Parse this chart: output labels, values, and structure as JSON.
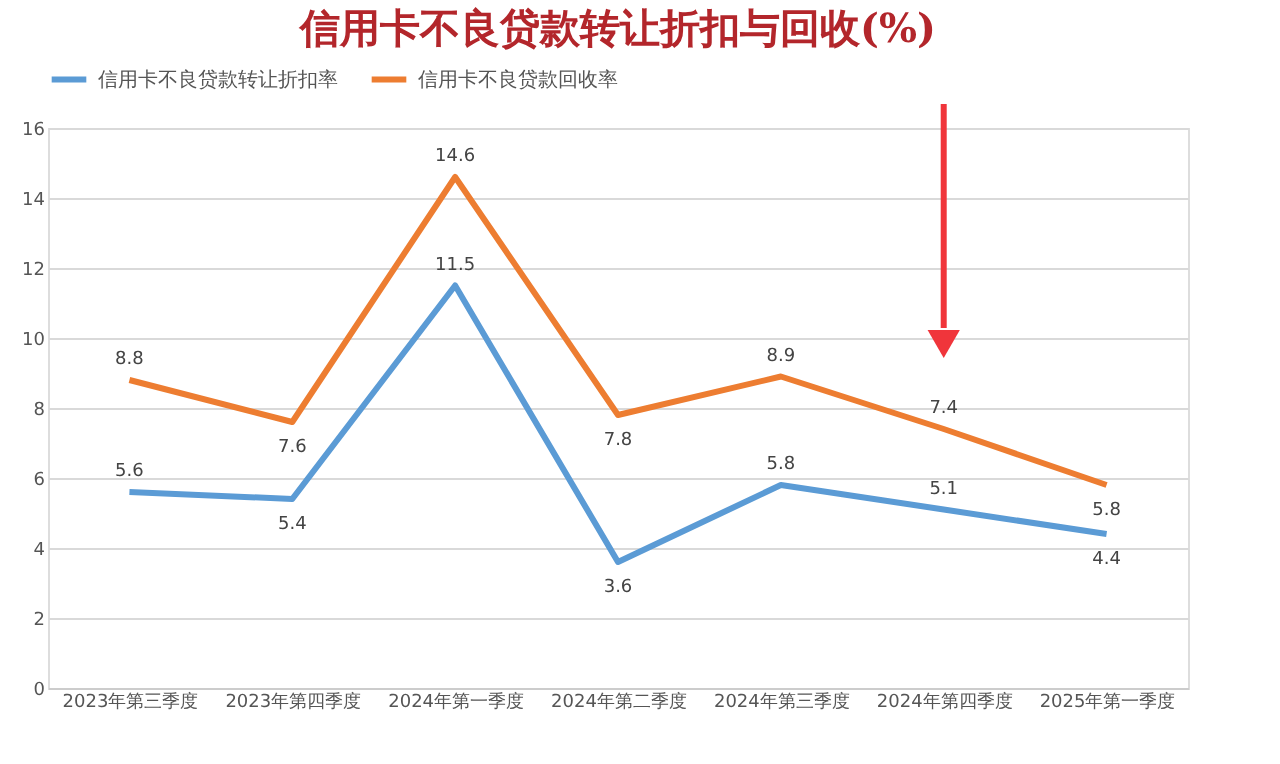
{
  "chart_data": {
    "type": "line",
    "title": "信用卡不良贷款转让折扣与回收(%)",
    "categories": [
      "2023年第三季度",
      "2023年第四季度",
      "2024年第一季度",
      "2024年第二季度",
      "2024年第三季度",
      "2024年第四季度",
      "2025年第一季度"
    ],
    "series": [
      {
        "name": "信用卡不良贷款转让折扣率",
        "color": "#5b9bd5",
        "values": [
          5.6,
          5.4,
          11.5,
          3.6,
          5.8,
          5.1,
          4.4
        ]
      },
      {
        "name": "信用卡不良贷款回收率",
        "color": "#ed7d31",
        "values": [
          8.8,
          7.6,
          14.6,
          7.8,
          8.9,
          7.4,
          5.8
        ]
      }
    ],
    "ylim": [
      0,
      16
    ],
    "yticks": [
      0,
      2,
      4,
      6,
      8,
      10,
      12,
      14,
      16
    ],
    "grid": "y",
    "legend": "top",
    "data_labels": true,
    "marker": "none",
    "line_style": "solid"
  }
}
